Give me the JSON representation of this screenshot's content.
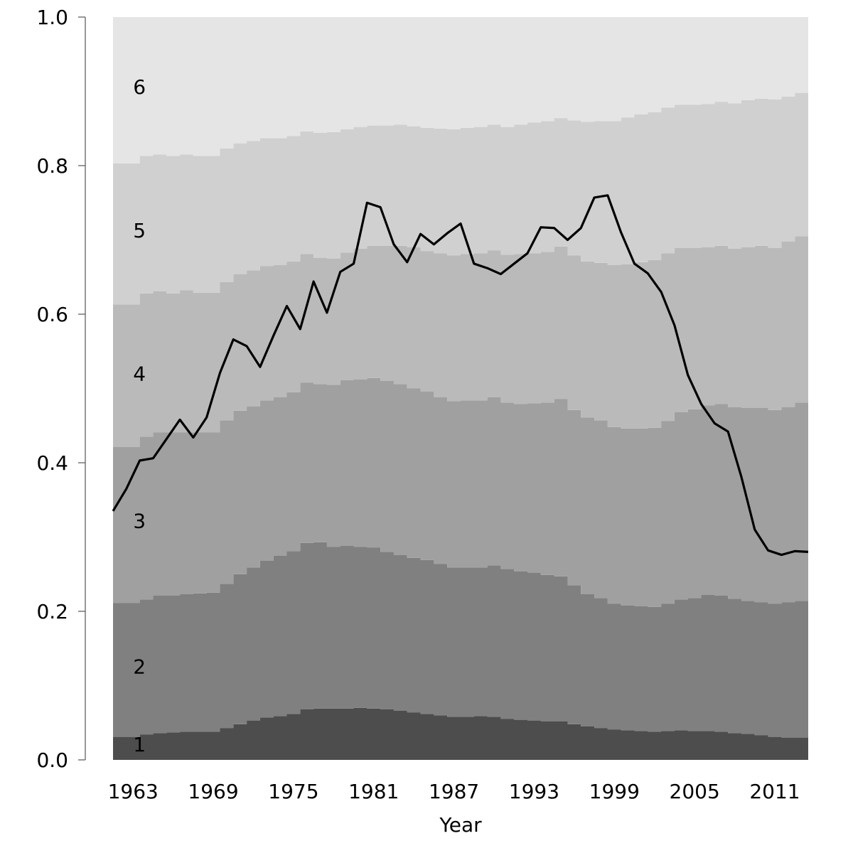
{
  "chart_data": {
    "type": "area",
    "title": "",
    "xlabel": "Year",
    "ylabel": "",
    "xlim": [
      1962,
      2014
    ],
    "ylim": [
      0,
      1
    ],
    "grid": false,
    "legend": "none",
    "x_ticks": [
      1963,
      1969,
      1975,
      1981,
      1987,
      1993,
      1999,
      2005,
      2011
    ],
    "y_ticks": [
      0.0,
      0.2,
      0.4,
      0.6,
      0.8,
      1.0
    ],
    "y_tick_labels": [
      "0.0",
      "0.2",
      "0.4",
      "0.6",
      "0.8",
      "1.0"
    ],
    "years": [
      1962,
      1963,
      1964,
      1965,
      1966,
      1967,
      1968,
      1969,
      1970,
      1971,
      1972,
      1973,
      1974,
      1975,
      1976,
      1977,
      1978,
      1979,
      1980,
      1981,
      1982,
      1983,
      1984,
      1985,
      1986,
      1987,
      1988,
      1989,
      1990,
      1991,
      1992,
      1993,
      1994,
      1995,
      1996,
      1997,
      1998,
      1999,
      2000,
      2001,
      2002,
      2003,
      2004,
      2005,
      2006,
      2007,
      2008,
      2009,
      2010,
      2011,
      2012,
      2013,
      2014
    ],
    "cumulative_bounds": [
      {
        "label": "1",
        "color": "#4d4d4d",
        "upper": [
          0.031,
          0.031,
          0.034,
          0.036,
          0.037,
          0.038,
          0.038,
          0.038,
          0.043,
          0.048,
          0.053,
          0.057,
          0.059,
          0.062,
          0.068,
          0.069,
          0.069,
          0.069,
          0.07,
          0.069,
          0.068,
          0.066,
          0.064,
          0.062,
          0.06,
          0.058,
          0.058,
          0.059,
          0.058,
          0.055,
          0.054,
          0.053,
          0.052,
          0.052,
          0.048,
          0.045,
          0.043,
          0.041,
          0.04,
          0.039,
          0.038,
          0.039,
          0.04,
          0.039,
          0.039,
          0.038,
          0.036,
          0.035,
          0.033,
          0.031,
          0.03,
          0.03,
          0.03
        ]
      },
      {
        "label": "2",
        "color": "#808080",
        "upper": [
          0.211,
          0.211,
          0.216,
          0.221,
          0.221,
          0.223,
          0.224,
          0.225,
          0.237,
          0.25,
          0.259,
          0.268,
          0.275,
          0.281,
          0.292,
          0.293,
          0.287,
          0.288,
          0.287,
          0.286,
          0.28,
          0.276,
          0.272,
          0.269,
          0.264,
          0.259,
          0.259,
          0.259,
          0.262,
          0.257,
          0.254,
          0.252,
          0.249,
          0.247,
          0.235,
          0.223,
          0.218,
          0.21,
          0.208,
          0.207,
          0.206,
          0.21,
          0.216,
          0.218,
          0.222,
          0.221,
          0.217,
          0.214,
          0.212,
          0.21,
          0.212,
          0.214,
          0.216
        ]
      },
      {
        "label": "3",
        "color": "#a0a0a0",
        "upper": [
          0.421,
          0.421,
          0.435,
          0.441,
          0.441,
          0.441,
          0.441,
          0.441,
          0.457,
          0.47,
          0.476,
          0.484,
          0.488,
          0.495,
          0.508,
          0.506,
          0.505,
          0.511,
          0.512,
          0.514,
          0.51,
          0.506,
          0.5,
          0.496,
          0.488,
          0.483,
          0.484,
          0.484,
          0.488,
          0.481,
          0.479,
          0.48,
          0.481,
          0.486,
          0.471,
          0.461,
          0.457,
          0.448,
          0.446,
          0.446,
          0.447,
          0.456,
          0.468,
          0.472,
          0.477,
          0.479,
          0.475,
          0.474,
          0.474,
          0.471,
          0.475,
          0.481,
          0.488
        ]
      },
      {
        "label": "4",
        "color": "#bababa",
        "upper": [
          0.613,
          0.613,
          0.628,
          0.631,
          0.628,
          0.632,
          0.629,
          0.629,
          0.643,
          0.654,
          0.659,
          0.665,
          0.666,
          0.671,
          0.681,
          0.676,
          0.675,
          0.683,
          0.688,
          0.692,
          0.692,
          0.692,
          0.69,
          0.685,
          0.682,
          0.679,
          0.681,
          0.682,
          0.686,
          0.68,
          0.681,
          0.682,
          0.684,
          0.691,
          0.679,
          0.671,
          0.669,
          0.666,
          0.667,
          0.67,
          0.673,
          0.682,
          0.689,
          0.689,
          0.69,
          0.692,
          0.688,
          0.69,
          0.692,
          0.689,
          0.698,
          0.705,
          0.713
        ]
      },
      {
        "label": "5",
        "color": "#d0d0d0",
        "upper": [
          0.803,
          0.803,
          0.813,
          0.815,
          0.813,
          0.815,
          0.813,
          0.813,
          0.823,
          0.83,
          0.833,
          0.837,
          0.837,
          0.84,
          0.846,
          0.844,
          0.845,
          0.849,
          0.852,
          0.854,
          0.854,
          0.855,
          0.853,
          0.851,
          0.85,
          0.849,
          0.851,
          0.852,
          0.855,
          0.852,
          0.855,
          0.858,
          0.86,
          0.864,
          0.861,
          0.859,
          0.86,
          0.86,
          0.865,
          0.869,
          0.872,
          0.878,
          0.882,
          0.882,
          0.883,
          0.886,
          0.884,
          0.888,
          0.89,
          0.889,
          0.893,
          0.898,
          0.902
        ]
      },
      {
        "label": "6",
        "color": "#e5e5e5",
        "upper": [
          1.0,
          1.0,
          1.0,
          1.0,
          1.0,
          1.0,
          1.0,
          1.0,
          1.0,
          1.0,
          1.0,
          1.0,
          1.0,
          1.0,
          1.0,
          1.0,
          1.0,
          1.0,
          1.0,
          1.0,
          1.0,
          1.0,
          1.0,
          1.0,
          1.0,
          1.0,
          1.0,
          1.0,
          1.0,
          1.0,
          1.0,
          1.0,
          1.0,
          1.0,
          1.0,
          1.0,
          1.0,
          1.0,
          1.0,
          1.0,
          1.0,
          1.0,
          1.0,
          1.0,
          1.0,
          1.0,
          1.0,
          1.0,
          1.0,
          1.0,
          1.0,
          1.0,
          1.0
        ]
      }
    ],
    "band_label_positions": [
      {
        "label": "1",
        "x": 1963.5,
        "y": 0.021
      },
      {
        "label": "2",
        "x": 1963.5,
        "y": 0.126
      },
      {
        "label": "3",
        "x": 1963.5,
        "y": 0.322
      },
      {
        "label": "4",
        "x": 1963.5,
        "y": 0.52
      },
      {
        "label": "5",
        "x": 1963.5,
        "y": 0.713
      },
      {
        "label": "6",
        "x": 1963.5,
        "y": 0.906
      }
    ],
    "line_series": {
      "color": "#000000",
      "x": [
        1962,
        1963,
        1964,
        1965,
        1966,
        1967,
        1968,
        1969,
        1970,
        1971,
        1972,
        1973,
        1974,
        1975,
        1976,
        1977,
        1978,
        1979,
        1980,
        1981,
        1982,
        1983,
        1984,
        1985,
        1986,
        1987,
        1988,
        1989,
        1990,
        1991,
        1992,
        1993,
        1994,
        1995,
        1996,
        1997,
        1998,
        1999,
        2000,
        2001,
        2002,
        2003,
        2004,
        2005,
        2006,
        2007,
        2008,
        2009,
        2010,
        2011,
        2012,
        2013,
        2014
      ],
      "y": [
        0.335,
        0.365,
        0.403,
        0.406,
        0.432,
        0.458,
        0.434,
        0.461,
        0.521,
        0.566,
        0.557,
        0.529,
        0.571,
        0.611,
        0.58,
        0.644,
        0.602,
        0.657,
        0.668,
        0.75,
        0.744,
        0.694,
        0.67,
        0.708,
        0.694,
        0.709,
        0.722,
        0.668,
        0.662,
        0.654,
        0.668,
        0.682,
        0.717,
        0.716,
        0.7,
        0.716,
        0.757,
        0.76,
        0.71,
        0.668,
        0.655,
        0.63,
        0.585,
        0.518,
        0.479,
        0.453,
        0.442,
        0.381,
        0.31,
        0.282,
        0.276,
        0.281,
        0.28
      ]
    }
  }
}
